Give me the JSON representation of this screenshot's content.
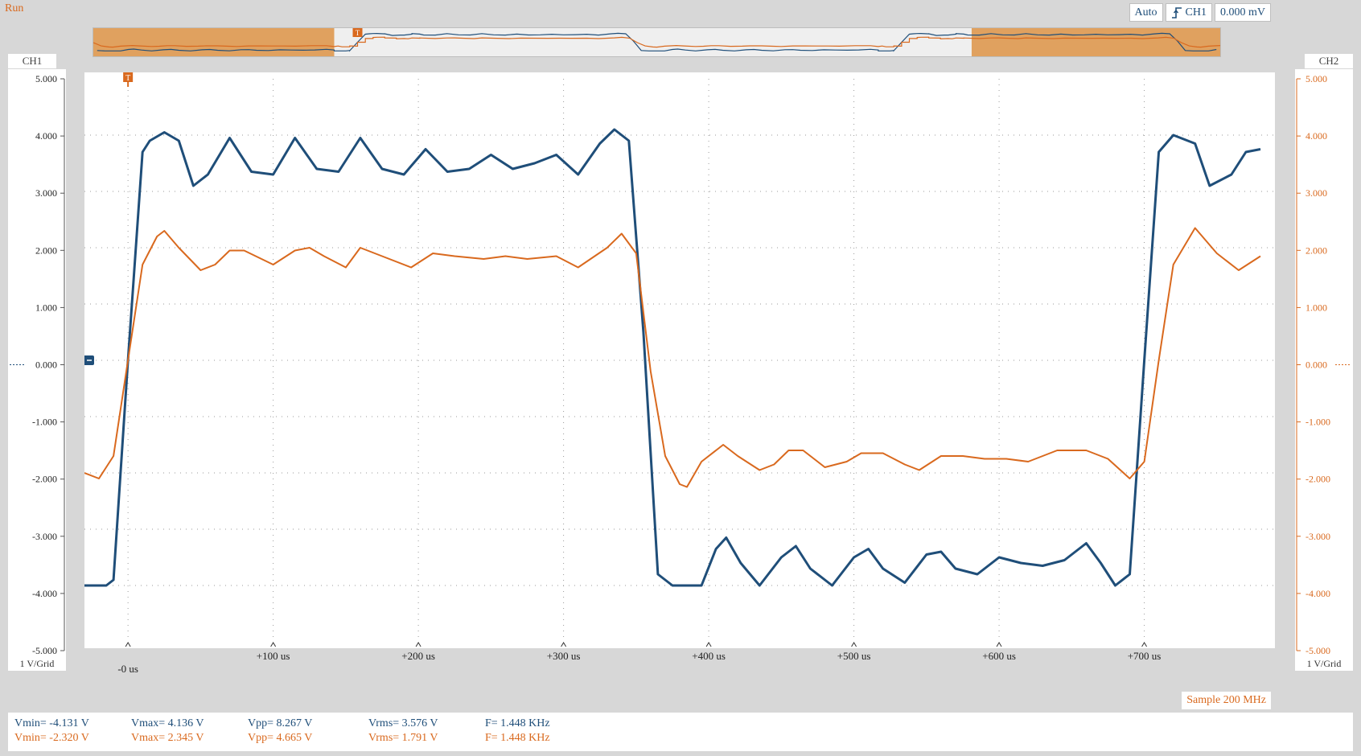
{
  "status": {
    "run": "Run"
  },
  "trigger": {
    "mode": "Auto",
    "channel": "CH1",
    "level": "0.000 mV",
    "marker": "T"
  },
  "channels": {
    "ch1": {
      "name": "CH1",
      "scale": "1 V/Grid",
      "color": "#1f4e79"
    },
    "ch2": {
      "name": "CH2",
      "scale": "1 V/Grid",
      "color": "#d9691e"
    }
  },
  "y_ticks": [
    "5.000",
    "4.000",
    "3.000",
    "2.000",
    "1.000",
    "0.000",
    "-1.000",
    "-2.000",
    "-3.000",
    "-4.000",
    "-5.000"
  ],
  "x_ticks": [
    "-0 us",
    "+100 us",
    "+200 us",
    "+300 us",
    "+400 us",
    "+500 us",
    "+600 us",
    "+700 us"
  ],
  "sample": "Sample 200 MHz",
  "measurements": {
    "ch1": {
      "vmin": "Vmin= -4.131 V",
      "vmax": "Vmax= 4.136 V",
      "vpp": "Vpp= 8.267 V",
      "vrms": "Vrms= 3.576 V",
      "freq": "F= 1.448 KHz"
    },
    "ch2": {
      "vmin": "Vmin= -2.320 V",
      "vmax": "Vmax= 2.345 V",
      "vpp": "Vpp= 4.665 V",
      "vrms": "Vrms= 1.791 V",
      "freq": "F= 1.448 KHz"
    }
  },
  "chart_data": {
    "type": "line",
    "xlabel": "",
    "ylabel": "",
    "x_unit": "us",
    "xlim": [
      -30,
      790
    ],
    "ylim": [
      -5,
      5
    ],
    "grid": true,
    "series": [
      {
        "name": "CH1",
        "x": [
          -30,
          -15,
          -10,
          0,
          10,
          15,
          25,
          35,
          45,
          55,
          70,
          85,
          100,
          115,
          130,
          145,
          160,
          175,
          190,
          205,
          220,
          235,
          250,
          265,
          280,
          295,
          310,
          325,
          335,
          345,
          355,
          365,
          375,
          380,
          395,
          405,
          412,
          422,
          435,
          450,
          460,
          470,
          485,
          500,
          510,
          520,
          535,
          550,
          560,
          570,
          585,
          600,
          615,
          630,
          645,
          660,
          670,
          680,
          690,
          700,
          710,
          720,
          735,
          745,
          760,
          770,
          780
        ],
        "y": [
          -4.0,
          -4.0,
          -3.9,
          0.0,
          3.7,
          3.9,
          4.05,
          3.9,
          3.1,
          3.3,
          3.95,
          3.35,
          3.3,
          3.95,
          3.4,
          3.35,
          3.95,
          3.4,
          3.3,
          3.75,
          3.35,
          3.4,
          3.65,
          3.4,
          3.5,
          3.65,
          3.3,
          3.85,
          4.1,
          3.9,
          0.5,
          -3.8,
          -4.0,
          -4.0,
          -4.0,
          -3.35,
          -3.15,
          -3.6,
          -4.0,
          -3.5,
          -3.3,
          -3.7,
          -4.0,
          -3.5,
          -3.35,
          -3.7,
          -3.95,
          -3.45,
          -3.4,
          -3.7,
          -3.8,
          -3.5,
          -3.6,
          -3.65,
          -3.55,
          -3.25,
          -3.6,
          -4.0,
          -3.8,
          0.0,
          3.7,
          4.0,
          3.85,
          3.1,
          3.3,
          3.7,
          3.75
        ]
      },
      {
        "name": "CH2",
        "x": [
          -30,
          -20,
          -10,
          0,
          10,
          20,
          25,
          35,
          50,
          60,
          70,
          80,
          100,
          115,
          125,
          135,
          150,
          160,
          175,
          195,
          210,
          225,
          245,
          260,
          275,
          295,
          310,
          330,
          340,
          350,
          360,
          370,
          380,
          385,
          395,
          410,
          420,
          435,
          445,
          455,
          465,
          480,
          495,
          505,
          520,
          535,
          545,
          560,
          575,
          590,
          605,
          620,
          640,
          660,
          675,
          690,
          700,
          710,
          720,
          735,
          750,
          765,
          780
        ],
        "y": [
          -2.0,
          -2.1,
          -1.7,
          0.0,
          1.7,
          2.2,
          2.3,
          2.0,
          1.6,
          1.7,
          1.95,
          1.95,
          1.7,
          1.95,
          2.0,
          1.85,
          1.65,
          2.0,
          1.85,
          1.65,
          1.9,
          1.85,
          1.8,
          1.85,
          1.8,
          1.85,
          1.65,
          2.0,
          2.25,
          1.9,
          -0.2,
          -1.7,
          -2.2,
          -2.25,
          -1.8,
          -1.5,
          -1.7,
          -1.95,
          -1.85,
          -1.6,
          -1.6,
          -1.9,
          -1.8,
          -1.65,
          -1.65,
          -1.85,
          -1.95,
          -1.7,
          -1.7,
          -1.75,
          -1.75,
          -1.8,
          -1.6,
          -1.6,
          -1.75,
          -2.1,
          -1.8,
          0.0,
          1.7,
          2.35,
          1.9,
          1.6,
          1.85
        ]
      }
    ]
  }
}
